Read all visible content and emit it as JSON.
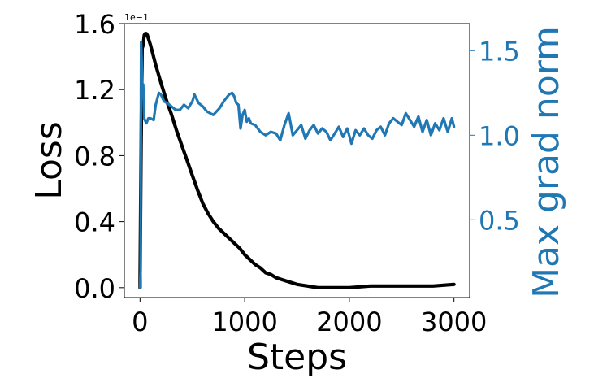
{
  "colors": {
    "loss": "#000000",
    "grad": "#1f77b4",
    "axis": "#000000",
    "background": "#ffffff"
  },
  "chart_data": {
    "type": "line",
    "xlabel": "Steps",
    "ylabel": "Loss",
    "y2label": "Max grad norm",
    "offset_text": "1e−1",
    "xlim": [
      -150,
      3150
    ],
    "ylim": [
      -0.06,
      1.6
    ],
    "y2lim": [
      0.04,
      1.66
    ],
    "xticks": [
      0,
      1000,
      2000,
      3000
    ],
    "xtick_labels": [
      "0",
      "1000",
      "2000",
      "3000"
    ],
    "yticks": [
      0.0,
      0.4,
      0.8,
      1.2,
      1.6
    ],
    "ytick_labels": [
      "0.0",
      "0.4",
      "0.8",
      "1.2",
      "1.6"
    ],
    "y2ticks": [
      0.5,
      1.0,
      1.5
    ],
    "y2tick_labels": [
      "0.5",
      "1.0",
      "1.5"
    ],
    "grid": false,
    "legend": "none",
    "series": [
      {
        "axis": "left",
        "x": [
          0,
          10,
          20,
          30,
          40,
          50,
          60,
          70,
          80,
          100,
          150,
          200,
          250,
          300,
          350,
          400,
          450,
          500,
          550,
          600,
          650,
          700,
          750,
          800,
          850,
          900,
          950,
          1000,
          1050,
          1100,
          1150,
          1200,
          1250,
          1300,
          1400,
          1500,
          1600,
          1700,
          1800,
          1900,
          2000,
          2200,
          2400,
          2600,
          2800,
          3000
        ],
        "y": [
          0.0,
          0.85,
          1.45,
          1.47,
          1.53,
          1.54,
          1.54,
          1.53,
          1.51,
          1.47,
          1.35,
          1.24,
          1.14,
          1.05,
          0.95,
          0.86,
          0.77,
          0.68,
          0.59,
          0.51,
          0.45,
          0.4,
          0.36,
          0.33,
          0.3,
          0.27,
          0.24,
          0.2,
          0.17,
          0.14,
          0.12,
          0.09,
          0.08,
          0.06,
          0.04,
          0.02,
          0.01,
          0.0,
          0.0,
          0.0,
          0.0,
          0.01,
          0.01,
          0.01,
          0.01,
          0.02
        ]
      },
      {
        "axis": "right",
        "x": [
          0,
          5,
          10,
          15,
          20,
          30,
          40,
          60,
          80,
          100,
          130,
          150,
          180,
          200,
          230,
          260,
          300,
          340,
          380,
          420,
          460,
          500,
          520,
          560,
          600,
          640,
          700,
          760,
          800,
          850,
          880,
          900,
          920,
          940,
          960,
          980,
          1000,
          1020,
          1040,
          1060,
          1100,
          1150,
          1200,
          1250,
          1300,
          1340,
          1380,
          1420,
          1460,
          1500,
          1540,
          1580,
          1620,
          1660,
          1700,
          1740,
          1780,
          1820,
          1860,
          1900,
          1940,
          1980,
          2020,
          2060,
          2100,
          2140,
          2180,
          2220,
          2260,
          2300,
          2340,
          2380,
          2420,
          2460,
          2500,
          2540,
          2580,
          2620,
          2660,
          2700,
          2740,
          2780,
          2820,
          2860,
          2900,
          2940,
          2980,
          3000
        ],
        "y": [
          0.1,
          0.2,
          1.55,
          1.45,
          1.25,
          1.3,
          1.1,
          1.07,
          1.1,
          1.1,
          1.09,
          1.18,
          1.25,
          1.24,
          1.2,
          1.19,
          1.17,
          1.15,
          1.15,
          1.18,
          1.16,
          1.2,
          1.24,
          1.19,
          1.17,
          1.14,
          1.12,
          1.16,
          1.2,
          1.24,
          1.25,
          1.23,
          1.19,
          1.18,
          1.04,
          1.12,
          1.15,
          1.08,
          1.1,
          1.07,
          1.06,
          1.02,
          1.0,
          1.02,
          1.01,
          0.97,
          1.06,
          1.13,
          1.0,
          1.03,
          1.06,
          0.98,
          1.03,
          1.06,
          1.01,
          1.04,
          1.02,
          0.97,
          1.01,
          1.05,
          0.99,
          1.04,
          0.95,
          1.03,
          1.0,
          1.04,
          1.0,
          0.98,
          1.03,
          1.05,
          1.0,
          1.07,
          1.1,
          1.08,
          1.06,
          1.13,
          1.09,
          1.05,
          1.11,
          1.02,
          1.09,
          1.0,
          1.07,
          1.03,
          1.1,
          1.02,
          1.1,
          1.05
        ]
      }
    ]
  }
}
